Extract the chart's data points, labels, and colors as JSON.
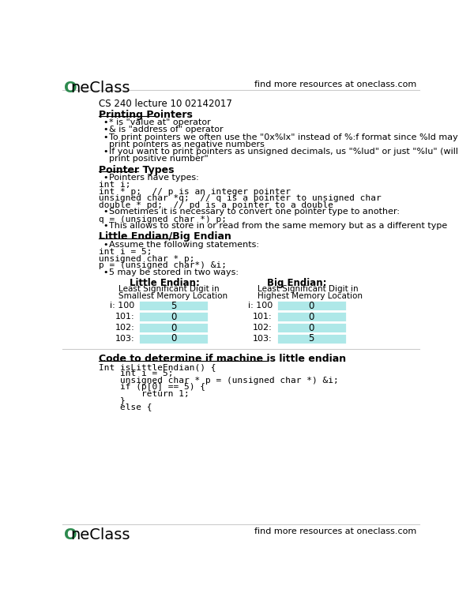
{
  "bg_color": "#ffffff",
  "header_right": "find more resources at oneclass.com",
  "footer_right": "find more resources at oneclass.com",
  "logo_color": "#2d8a4e",
  "title_line": "CS 240 lecture 10 02142017",
  "section1_title": "Printing Pointers",
  "section1_bullets": [
    "* is \"value at\" operator",
    "& is \"address of\" operator",
    "To print pointers we often use the \"0x%lx\" instead of %:f format since %ld may\n    print pointers as negative numbers",
    "If you want to print pointers as unsigned decimals, us \"%lud\" or just \"%lu\" (will\n    print positive number\""
  ],
  "section2_title": "Pointer Types",
  "section2_bullets": [
    "Pointers have types:"
  ],
  "section2_code": [
    "int i;",
    "int * p;  // p is an integer pointer",
    "unsigned char *q;  // q is a pointer to unsigned char",
    "double * pd;  // pd is a pointer to a double"
  ],
  "section2_bullets2": [
    "Sometimes it is necessary to convert one pointer type to another:"
  ],
  "section2_code2": [
    "q = (unsigned char *) p;"
  ],
  "section2_bullets3": [
    "This allows to store in or read from the same memory but as a different type"
  ],
  "section3_title": "Little Endian/Big Endian",
  "section3_bullets": [
    "Assume the following statements:"
  ],
  "section3_code": [
    "int i = 5;",
    "unsigned char * p;",
    "p = (unsigned char*) &i;"
  ],
  "section3_bullets2": [
    "5 may be stored in two ways:"
  ],
  "little_endian_title": "Little Endian:",
  "little_endian_sub1": "Least Significant Digit in",
  "little_endian_sub2": "Smallest Memory Location",
  "big_endian_title": "Big Endian:",
  "big_endian_sub1": "Least Significant Digit in",
  "big_endian_sub2": "Highest Memory Location",
  "table_addresses": [
    "i: 100",
    "101:",
    "102:",
    "103:"
  ],
  "little_endian_vals": [
    "5",
    "0",
    "0",
    "0"
  ],
  "big_endian_vals": [
    "0",
    "0",
    "0",
    "5"
  ],
  "table_color": "#aee8e8",
  "section4_title": "Code to determine if machine is little endian",
  "section4_code": [
    "Int isLittleEndian() {",
    "    int i = 5;",
    "    unsigned char * p = (unsigned char *) &i;",
    "    if (p[0] == 5) {",
    "        return 1;",
    "    }",
    "    else {"
  ]
}
